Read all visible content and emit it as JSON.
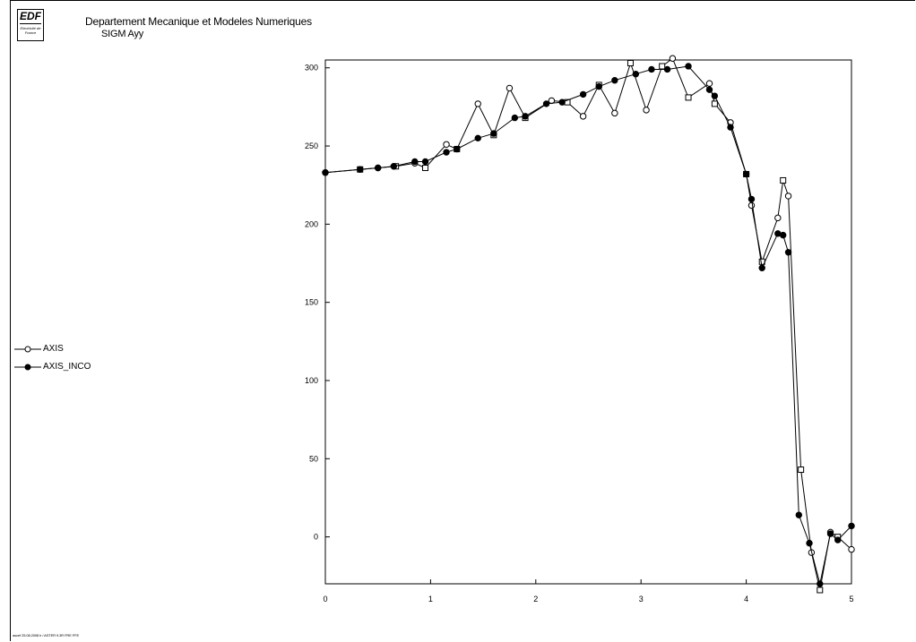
{
  "header": {
    "logo_text": "EDF",
    "logo_subtext": "Electricité de France",
    "title": "Departement Mecanique et Modeles Numeriques",
    "subtitle": "SIGM Ayy"
  },
  "footer": {
    "text": "ascef 25.08.2008 Ir / ASTER 9.3R  FRE FFE"
  },
  "colors": {
    "axes": "#000000",
    "series": "#000000",
    "background": "#ffffff"
  },
  "chart_data": {
    "type": "line",
    "title": "SIGM Ayy",
    "xlabel": "",
    "ylabel": "",
    "xlim": [
      0,
      5
    ],
    "ylim": [
      -30,
      305
    ],
    "xticks": [
      "0",
      "1",
      "2",
      "3",
      "4",
      "5"
    ],
    "yticks": [
      "0",
      "50",
      "100",
      "150",
      "200",
      "250",
      "300"
    ],
    "grid": false,
    "legend_position": "left-middle",
    "series": [
      {
        "name": "AXIS",
        "marker": "open",
        "x": [
          0,
          0.33,
          0.5,
          0.67,
          0.85,
          0.95,
          1.15,
          1.25,
          1.45,
          1.6,
          1.75,
          1.9,
          2.15,
          2.3,
          2.45,
          2.6,
          2.75,
          2.9,
          3.05,
          3.2,
          3.3,
          3.45,
          3.65,
          3.7,
          3.85,
          4.0,
          4.05,
          4.15,
          4.3,
          4.35,
          4.4,
          4.52,
          4.62,
          4.7,
          4.8,
          4.87,
          5.0
        ],
        "y": [
          233,
          235,
          236,
          237,
          239,
          236,
          251,
          248,
          277,
          257,
          287,
          268,
          279,
          278,
          269,
          289,
          271,
          303,
          273,
          301,
          306,
          281,
          290,
          277,
          265,
          232,
          212,
          176,
          204,
          228,
          218,
          43,
          -10,
          -34,
          3,
          0,
          -8
        ]
      },
      {
        "name": "AXIS_INCO",
        "marker": "filled",
        "x": [
          0,
          0.33,
          0.5,
          0.65,
          0.85,
          0.95,
          1.15,
          1.25,
          1.45,
          1.6,
          1.8,
          1.9,
          2.1,
          2.25,
          2.45,
          2.6,
          2.75,
          2.95,
          3.1,
          3.25,
          3.45,
          3.65,
          3.7,
          3.85,
          4.0,
          4.05,
          4.15,
          4.3,
          4.35,
          4.4,
          4.5,
          4.6,
          4.7,
          4.8,
          4.87,
          5.0
        ],
        "y": [
          233,
          235,
          236,
          237,
          240,
          240,
          246,
          248,
          255,
          258,
          268,
          269,
          277,
          278,
          283,
          288,
          292,
          296,
          299,
          299,
          301,
          286,
          282,
          262,
          232,
          216,
          172,
          194,
          193,
          182,
          14,
          -4,
          -30,
          2,
          -2,
          7
        ]
      }
    ]
  }
}
